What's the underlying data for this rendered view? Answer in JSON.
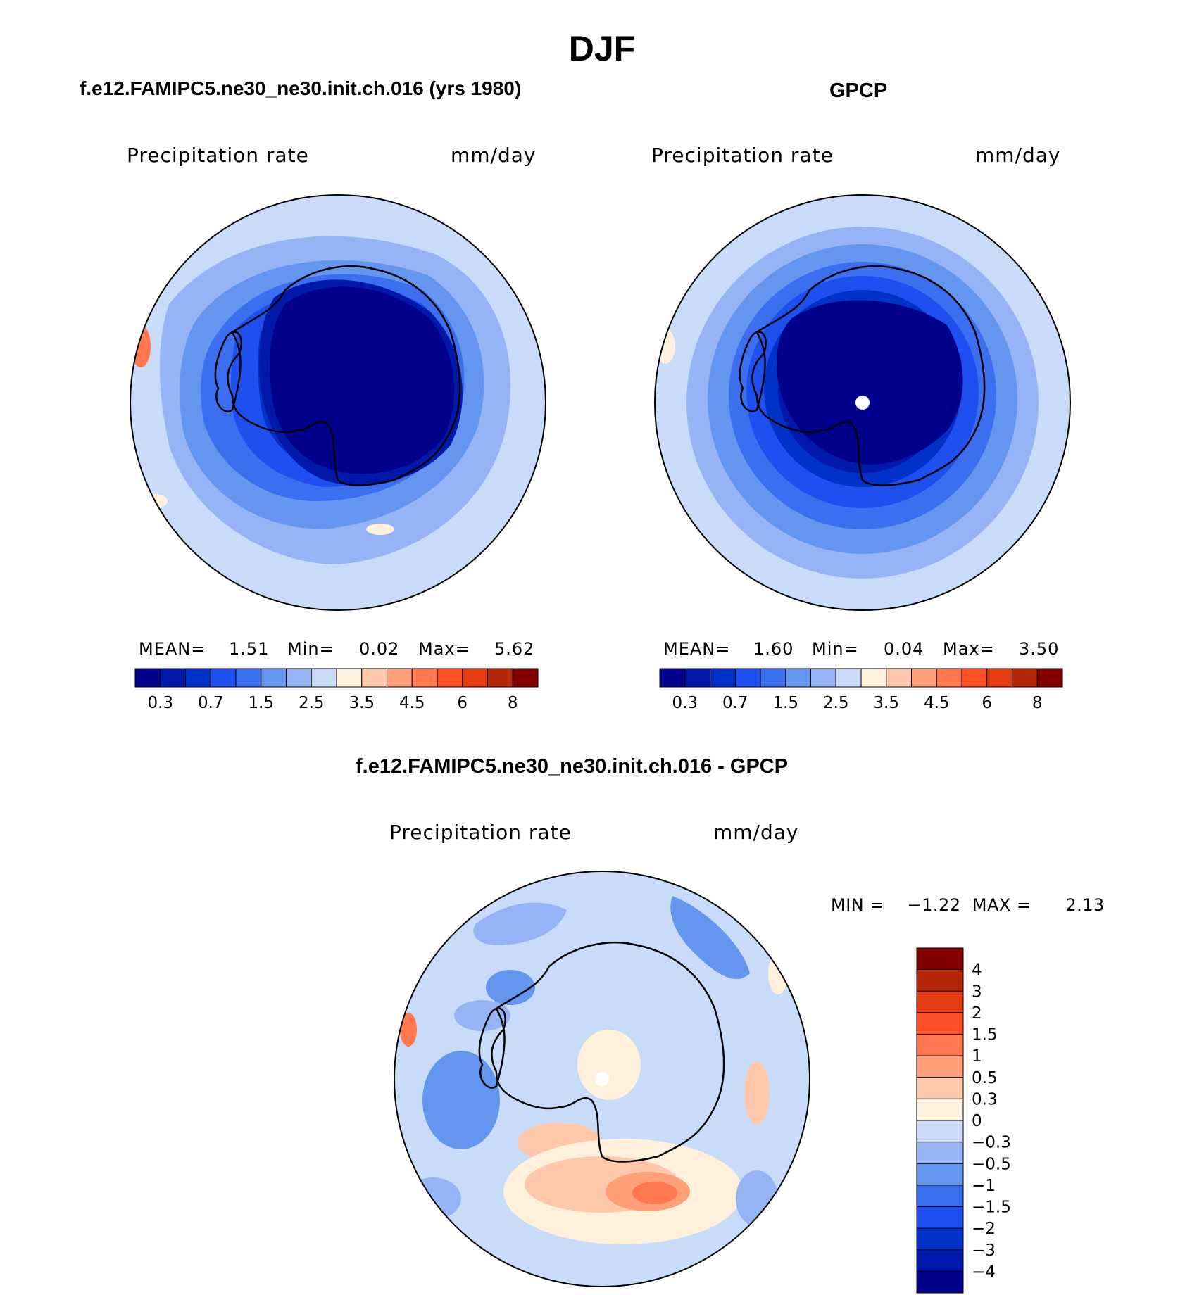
{
  "season": "DJF",
  "panels": [
    {
      "id": "model",
      "title": "f.e12.FAMIPC5.ne30_ne30.init.ch.016 (yrs 1980)",
      "variable": "Precipitation  rate",
      "units": "mm/day",
      "stats": {
        "mean_label": "MEAN=",
        "mean": "1.51",
        "min_label": "Min=",
        "min": "0.02",
        "max_label": "Max=",
        "max": "5.62"
      }
    },
    {
      "id": "obs",
      "title": "GPCP",
      "variable": "Precipitation  rate",
      "units": "mm/day",
      "stats": {
        "mean_label": "MEAN=",
        "mean": "1.60",
        "min_label": "Min=",
        "min": "0.04",
        "max_label": "Max=",
        "max": "3.50"
      }
    }
  ],
  "diff_panel": {
    "title": "f.e12.FAMIPC5.ne30_ne30.init.ch.016 - GPCP",
    "variable": "Precipitation  rate",
    "units": "mm/day",
    "minmax_text": "MIN =    −1.22  MAX =      2.13"
  },
  "abs_colorbar": {
    "colors": [
      "#00008c",
      "#0019aa",
      "#0032c8",
      "#1e50f0",
      "#3c6ef0",
      "#6496f0",
      "#96b4f5",
      "#c8dcfa",
      "#fff0dc",
      "#ffc8aa",
      "#ffa07a",
      "#ff7850",
      "#ff5028",
      "#e63c14",
      "#b42808",
      "#820000"
    ],
    "tick_labels": [
      "0.3",
      "0.7",
      "1.5",
      "2.5",
      "3.5",
      "4.5",
      "6",
      "8"
    ]
  },
  "diff_colorbar": {
    "colors": [
      "#820000",
      "#b42808",
      "#e63c14",
      "#ff5028",
      "#ff7850",
      "#ffa07a",
      "#ffc8aa",
      "#fff0dc",
      "#c8dcfa",
      "#96b4f5",
      "#6496f0",
      "#3c6ef0",
      "#1e50f0",
      "#0032c8",
      "#0019aa",
      "#00008c"
    ],
    "tick_labels": [
      "4",
      "3",
      "2",
      "1.5",
      "1",
      "0.5",
      "0.3",
      "0",
      "−0.3",
      "−0.5",
      "−1",
      "−1.5",
      "−2",
      "−3",
      "−4"
    ]
  }
}
